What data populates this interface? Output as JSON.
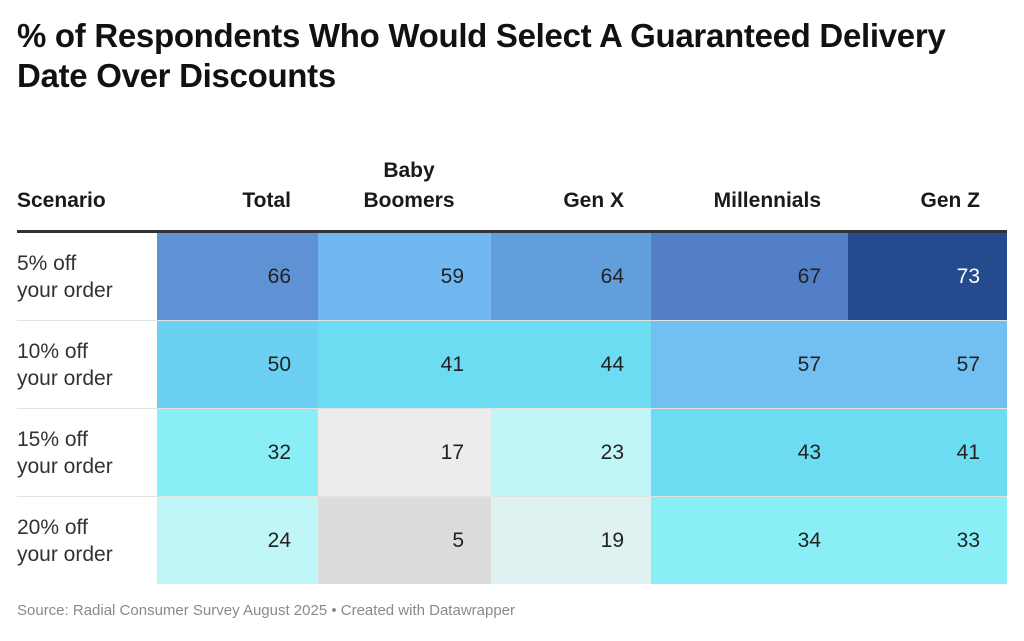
{
  "title": "% of Respondents Who Would Select A Guaranteed Delivery Date Over Discounts",
  "source": "Source: Radial Consumer Survey August 2025 • Created with Datawrapper",
  "chart_data": {
    "type": "table",
    "title": "% of Respondents Who Would Select A Guaranteed Delivery Date Over Discounts",
    "columns": [
      "Scenario",
      "Total",
      "Baby Boomers",
      "Gen X",
      "Millennials",
      "Gen Z"
    ],
    "rows": [
      {
        "scenario": "5% off your order",
        "values": [
          66,
          59,
          64,
          67,
          73
        ]
      },
      {
        "scenario": "10% off your order",
        "values": [
          50,
          41,
          44,
          57,
          57
        ]
      },
      {
        "scenario": "15% off your order",
        "values": [
          32,
          17,
          23,
          43,
          41
        ]
      },
      {
        "scenario": "20% off your order",
        "values": [
          24,
          5,
          19,
          34,
          33
        ]
      }
    ],
    "colors": {
      "5": "#dcdcdc",
      "17": "#ececec",
      "19": "#dff1f0",
      "23": "#c1f6f8",
      "24": "#c1f6f8",
      "32": "#8aeef6",
      "33": "#8aeef6",
      "34": "#8aeef6",
      "41": "#6cdcf2",
      "43": "#6cdcf2",
      "44": "#6cdcf2",
      "50": "#6cd0f3",
      "57": "#72c0f2",
      "59": "#72b8f0",
      "64": "#629ddc",
      "66": "#5f92d4",
      "67": "#527fc6",
      "73": "#234b8e"
    }
  }
}
